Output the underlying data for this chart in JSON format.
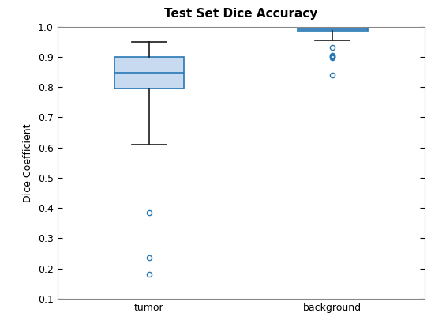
{
  "title": "Test Set Dice Accuracy",
  "ylabel": "Dice Coefficient",
  "categories": [
    "tumor",
    "background"
  ],
  "tumor": {
    "median": 0.848,
    "q1": 0.795,
    "q3": 0.9,
    "whisker_low": 0.61,
    "whisker_high": 0.95,
    "outliers": [
      0.385,
      0.235,
      0.18
    ]
  },
  "background": {
    "median": 0.99,
    "q1": 0.986,
    "q3": 0.997,
    "whisker_low": 0.955,
    "whisker_high": 0.999,
    "outliers": [
      0.932,
      0.905,
      0.901,
      0.899,
      0.898,
      0.84
    ]
  },
  "ylim": [
    0.1,
    1.0
  ],
  "yticks": [
    0.1,
    0.2,
    0.3,
    0.4,
    0.5,
    0.6,
    0.7,
    0.8,
    0.9,
    1.0
  ],
  "box_facecolor": "#c8daf0",
  "box_edgecolor": "#2878b4",
  "median_color": "#2878b4",
  "whisker_color": "#1a1a1a",
  "cap_color": "#1a1a1a",
  "outlier_color": "#2878b4",
  "title_fontsize": 11,
  "label_fontsize": 9,
  "tick_fontsize": 9,
  "background_color": "#ffffff"
}
